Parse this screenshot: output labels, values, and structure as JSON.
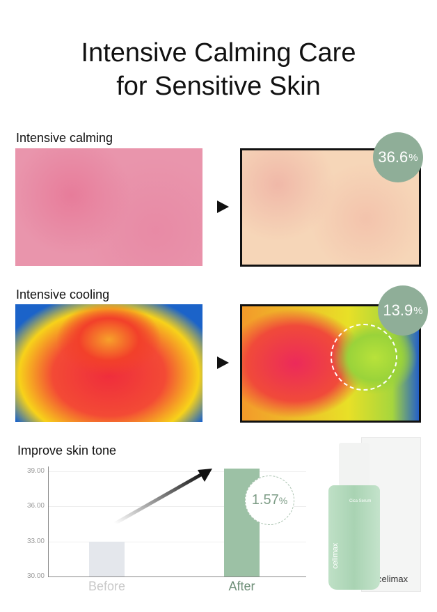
{
  "title_lines": [
    "Intensive Calming Care",
    "for Sensitive Skin"
  ],
  "sections": [
    {
      "label": "Intensive calming",
      "badge_value": "36.6",
      "badge_unit": "%"
    },
    {
      "label": "Intensive cooling",
      "badge_value": "13.9",
      "badge_unit": "%"
    },
    {
      "label": "Improve skin tone"
    }
  ],
  "colors": {
    "accent": "#8fae98",
    "after_bar": "#9cc1a5",
    "before_bar": "#e4e7ec"
  },
  "chart_data": {
    "type": "bar",
    "categories": [
      "Before",
      "After"
    ],
    "values": [
      33.0,
      39.2
    ],
    "ylim": [
      30,
      39.2
    ],
    "yticks": [
      "30.00",
      "33.00",
      "36.00",
      "39.00"
    ],
    "annotation": "1.57",
    "annotation_unit": "%",
    "grid": true
  },
  "product": {
    "brand": "celimax",
    "name": "Cica Serum"
  }
}
